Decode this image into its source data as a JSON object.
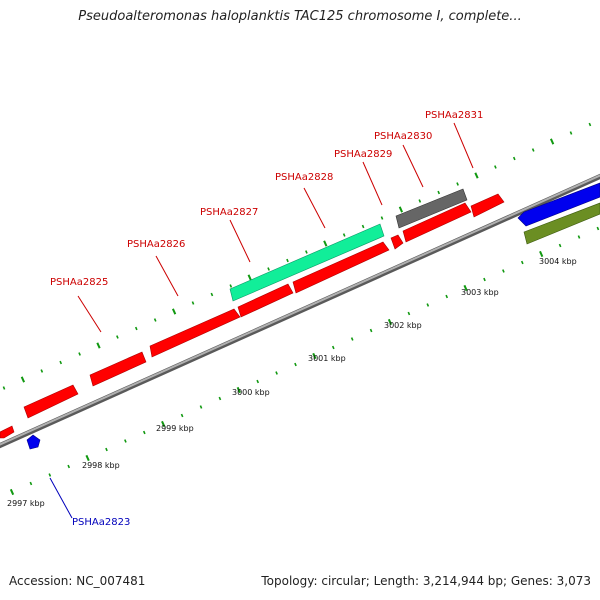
{
  "header": {
    "title": "Pseudoalteromonas haloplanktis TAC125 chromosome I, complete..."
  },
  "footer": {
    "accession": "Accession: NC_007481",
    "summary": "Topology: circular; Length: 3,214,944 bp; Genes: 3,073"
  },
  "colors": {
    "backbone": "#8a8a8a",
    "red": "#ff0000",
    "blue": "#0000ee",
    "teal": "#11ee99",
    "gray": "#666666",
    "olive": "#6b8e23",
    "tick": "#119911",
    "label_red": "#cc0000",
    "label_blue": "#0000bb"
  },
  "scale_labels": [
    "2997 kbp",
    "2998 kbp",
    "2999 kbp",
    "3000 kbp",
    "3001 kbp",
    "3002 kbp",
    "3003 kbp",
    "3004 kbp"
  ],
  "gene_labels": [
    {
      "name": "PSHAa2823",
      "color": "label_blue"
    },
    {
      "name": "PSHAa2825",
      "color": "label_red"
    },
    {
      "name": "PSHAa2826",
      "color": "label_red"
    },
    {
      "name": "PSHAa2827",
      "color": "label_red"
    },
    {
      "name": "PSHAa2828",
      "color": "label_red"
    },
    {
      "name": "PSHAa2829",
      "color": "label_red"
    },
    {
      "name": "PSHAa2830",
      "color": "label_red"
    },
    {
      "name": "PSHAa2831",
      "color": "label_red"
    }
  ]
}
